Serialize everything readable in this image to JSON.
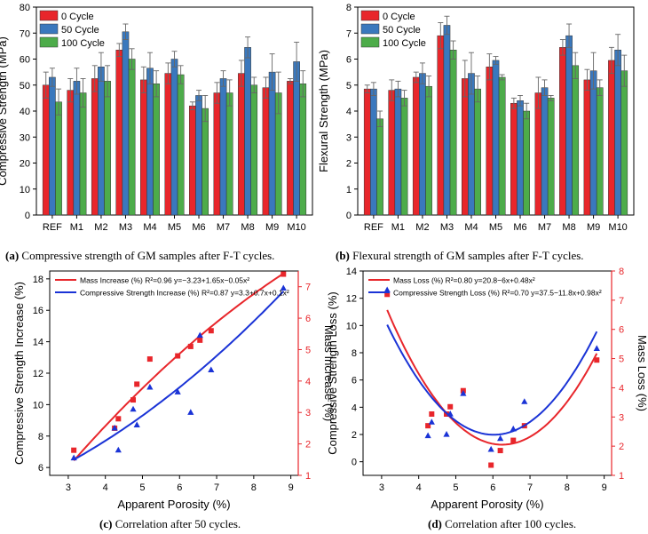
{
  "chart_data": [
    {
      "type": "bar",
      "panel": "a",
      "ylabel": "Compressive Strength (MPa)",
      "ylim": [
        0,
        80
      ],
      "yticks": [
        0,
        10,
        20,
        30,
        40,
        50,
        60,
        70,
        80
      ],
      "categories": [
        "REF",
        "M1",
        "M2",
        "M3",
        "M4",
        "M5",
        "M6",
        "M7",
        "M8",
        "M9",
        "M10"
      ],
      "series": [
        {
          "name": "0 Cycle",
          "color": "#e8262b",
          "values": [
            50,
            48,
            52.5,
            63.5,
            52,
            54.5,
            42,
            47,
            54.5,
            49,
            51.5
          ],
          "errors": [
            5,
            4.5,
            5,
            2.5,
            5,
            4,
            1.5,
            4,
            5,
            4,
            1
          ]
        },
        {
          "name": "50 Cycle",
          "color": "#3a78bd",
          "values": [
            53,
            51.5,
            57,
            70.5,
            56.5,
            60,
            46,
            52.5,
            64.5,
            55,
            59
          ],
          "errors": [
            3.5,
            5,
            5.5,
            3,
            6,
            3,
            2,
            3,
            4,
            7,
            7.5
          ]
        },
        {
          "name": "100 Cycle",
          "color": "#4dac4a",
          "values": [
            43.5,
            47,
            51.5,
            60,
            50.5,
            54,
            41,
            47,
            50,
            47,
            50.5
          ],
          "errors": [
            5,
            5.5,
            6,
            4,
            5,
            3.5,
            5,
            5,
            3,
            8,
            5
          ]
        }
      ],
      "caption_label": "(a)",
      "caption_text": "Compressive strength of GM samples after F-T cycles."
    },
    {
      "type": "bar",
      "panel": "b",
      "ylabel": "Flexural Strength (MPa)",
      "ylim": [
        0,
        8
      ],
      "yticks": [
        0,
        1,
        2,
        3,
        4,
        5,
        6,
        7,
        8
      ],
      "categories": [
        "REF",
        "M1",
        "M2",
        "M3",
        "M4",
        "M5",
        "M6",
        "M7",
        "M8",
        "M9",
        "M10"
      ],
      "series": [
        {
          "name": "0 Cycle",
          "color": "#e8262b",
          "values": [
            4.85,
            4.8,
            5.3,
            6.9,
            5.25,
            5.7,
            4.3,
            4.7,
            6.45,
            5.2,
            5.95
          ],
          "errors": [
            0.15,
            0.4,
            0.2,
            0.5,
            0.7,
            0.5,
            0.2,
            0.6,
            0.3,
            0.4,
            0.5
          ]
        },
        {
          "name": "50 Cycle",
          "color": "#3a78bd",
          "values": [
            4.85,
            4.85,
            5.45,
            7.3,
            5.45,
            5.95,
            4.4,
            4.9,
            6.9,
            5.55,
            6.35
          ],
          "errors": [
            0.25,
            0.3,
            0.4,
            0.35,
            0.8,
            0.15,
            0.2,
            0.3,
            0.45,
            0.7,
            0.6
          ]
        },
        {
          "name": "100 Cycle",
          "color": "#4dac4a",
          "values": [
            3.7,
            4.5,
            4.95,
            6.35,
            4.85,
            5.3,
            4.0,
            4.5,
            5.75,
            4.9,
            5.55
          ],
          "errors": [
            0.3,
            0.3,
            0.4,
            0.35,
            0.5,
            0.1,
            0.3,
            0.1,
            0.5,
            0.3,
            0.6
          ]
        }
      ],
      "caption_label": "(b)",
      "caption_text": "Flexural strength of GM samples after F-T cycles."
    },
    {
      "type": "scatter",
      "panel": "c",
      "xlabel": "Apparent Porosity (%)",
      "ylabel": "Compressive Strength Increase (%)",
      "y2label": "Mass Increase (%)",
      "xlim": [
        2.5,
        9.2
      ],
      "ylim": [
        5.5,
        18.5
      ],
      "y2lim": [
        1,
        7.5
      ],
      "xticks": [
        3,
        4,
        5,
        6,
        7,
        8,
        9
      ],
      "yticks": [
        6,
        8,
        10,
        12,
        14,
        16,
        18
      ],
      "y2ticks": [
        1,
        2,
        3,
        4,
        5,
        6,
        7
      ],
      "series": [
        {
          "name": "Mass Increase (%)",
          "axis": "right",
          "color": "#e8262b",
          "marker": "square",
          "x": [
            3.15,
            4.25,
            4.35,
            4.75,
            4.85,
            5.2,
            5.95,
            6.3,
            6.55,
            6.85,
            8.8
          ],
          "y": [
            1.8,
            2.5,
            2.8,
            3.4,
            3.9,
            4.7,
            4.8,
            5.1,
            5.3,
            5.6,
            7.4
          ],
          "fit": [
            -3.23,
            1.65,
            -0.05
          ],
          "legend": "Mass Increase (%) R²=0.96 y=−3.23+1.65x−0.05x²"
        },
        {
          "name": "Compressive Strength Increase (%)",
          "axis": "left",
          "color": "#1a33d6",
          "marker": "triangle",
          "x": [
            3.15,
            4.25,
            4.35,
            4.75,
            4.85,
            5.2,
            5.95,
            6.3,
            6.55,
            6.85,
            8.8
          ],
          "y": [
            6.6,
            8.5,
            7.1,
            9.7,
            8.7,
            11.1,
            10.8,
            9.5,
            14.4,
            12.2,
            17.4
          ],
          "fit": [
            3.3,
            0.7,
            0.1
          ],
          "legend": "Compressive Strength Increase (%) R²=0.87 y=3.3+0.7x+0.1x²"
        }
      ],
      "caption_label": "(c)",
      "caption_text": "Correlation after 50 cycles."
    },
    {
      "type": "scatter",
      "panel": "d",
      "xlabel": "Apparent Porosity (%)",
      "ylabel": "Compressive Strength Loss (%)",
      "y2label": "Mass Loss (%)",
      "xlim": [
        2.5,
        9.2
      ],
      "ylim": [
        -1,
        14
      ],
      "y2lim": [
        1,
        8
      ],
      "xticks": [
        3,
        4,
        5,
        6,
        7,
        8,
        9
      ],
      "yticks": [
        0,
        2,
        4,
        6,
        8,
        10,
        12,
        14
      ],
      "y2ticks": [
        1,
        2,
        3,
        4,
        5,
        6,
        7,
        8
      ],
      "series": [
        {
          "name": "Mass Loss (%)",
          "axis": "right",
          "color": "#e8262b",
          "marker": "square",
          "x": [
            3.15,
            4.25,
            4.35,
            4.75,
            4.85,
            5.2,
            5.95,
            6.2,
            6.55,
            6.85,
            8.8
          ],
          "y": [
            7.2,
            2.7,
            3.1,
            3.1,
            3.35,
            3.9,
            1.35,
            1.85,
            2.2,
            2.7,
            4.95
          ],
          "fit": [
            20.8,
            -6,
            0.48
          ],
          "legend": "Mass Loss (%) R²=0.80 y=20.8−6x+0.48x²"
        },
        {
          "name": "Compressive Strength Loss (%)",
          "axis": "left",
          "color": "#1a33d6",
          "marker": "triangle",
          "x": [
            3.15,
            4.25,
            4.35,
            4.75,
            4.85,
            5.2,
            5.95,
            6.2,
            6.55,
            6.85,
            8.8
          ],
          "y": [
            12.6,
            1.9,
            2.9,
            2.0,
            3.5,
            5.0,
            0.9,
            1.7,
            2.4,
            4.4,
            8.3
          ],
          "fit": [
            37.5,
            -11.8,
            0.98
          ],
          "legend": "Compressive Strength Loss (%) R²=0.70 y=37.5−11.8x+0.98x²"
        }
      ],
      "caption_label": "(d)",
      "caption_text": "Correlation after 100 cycles."
    }
  ]
}
